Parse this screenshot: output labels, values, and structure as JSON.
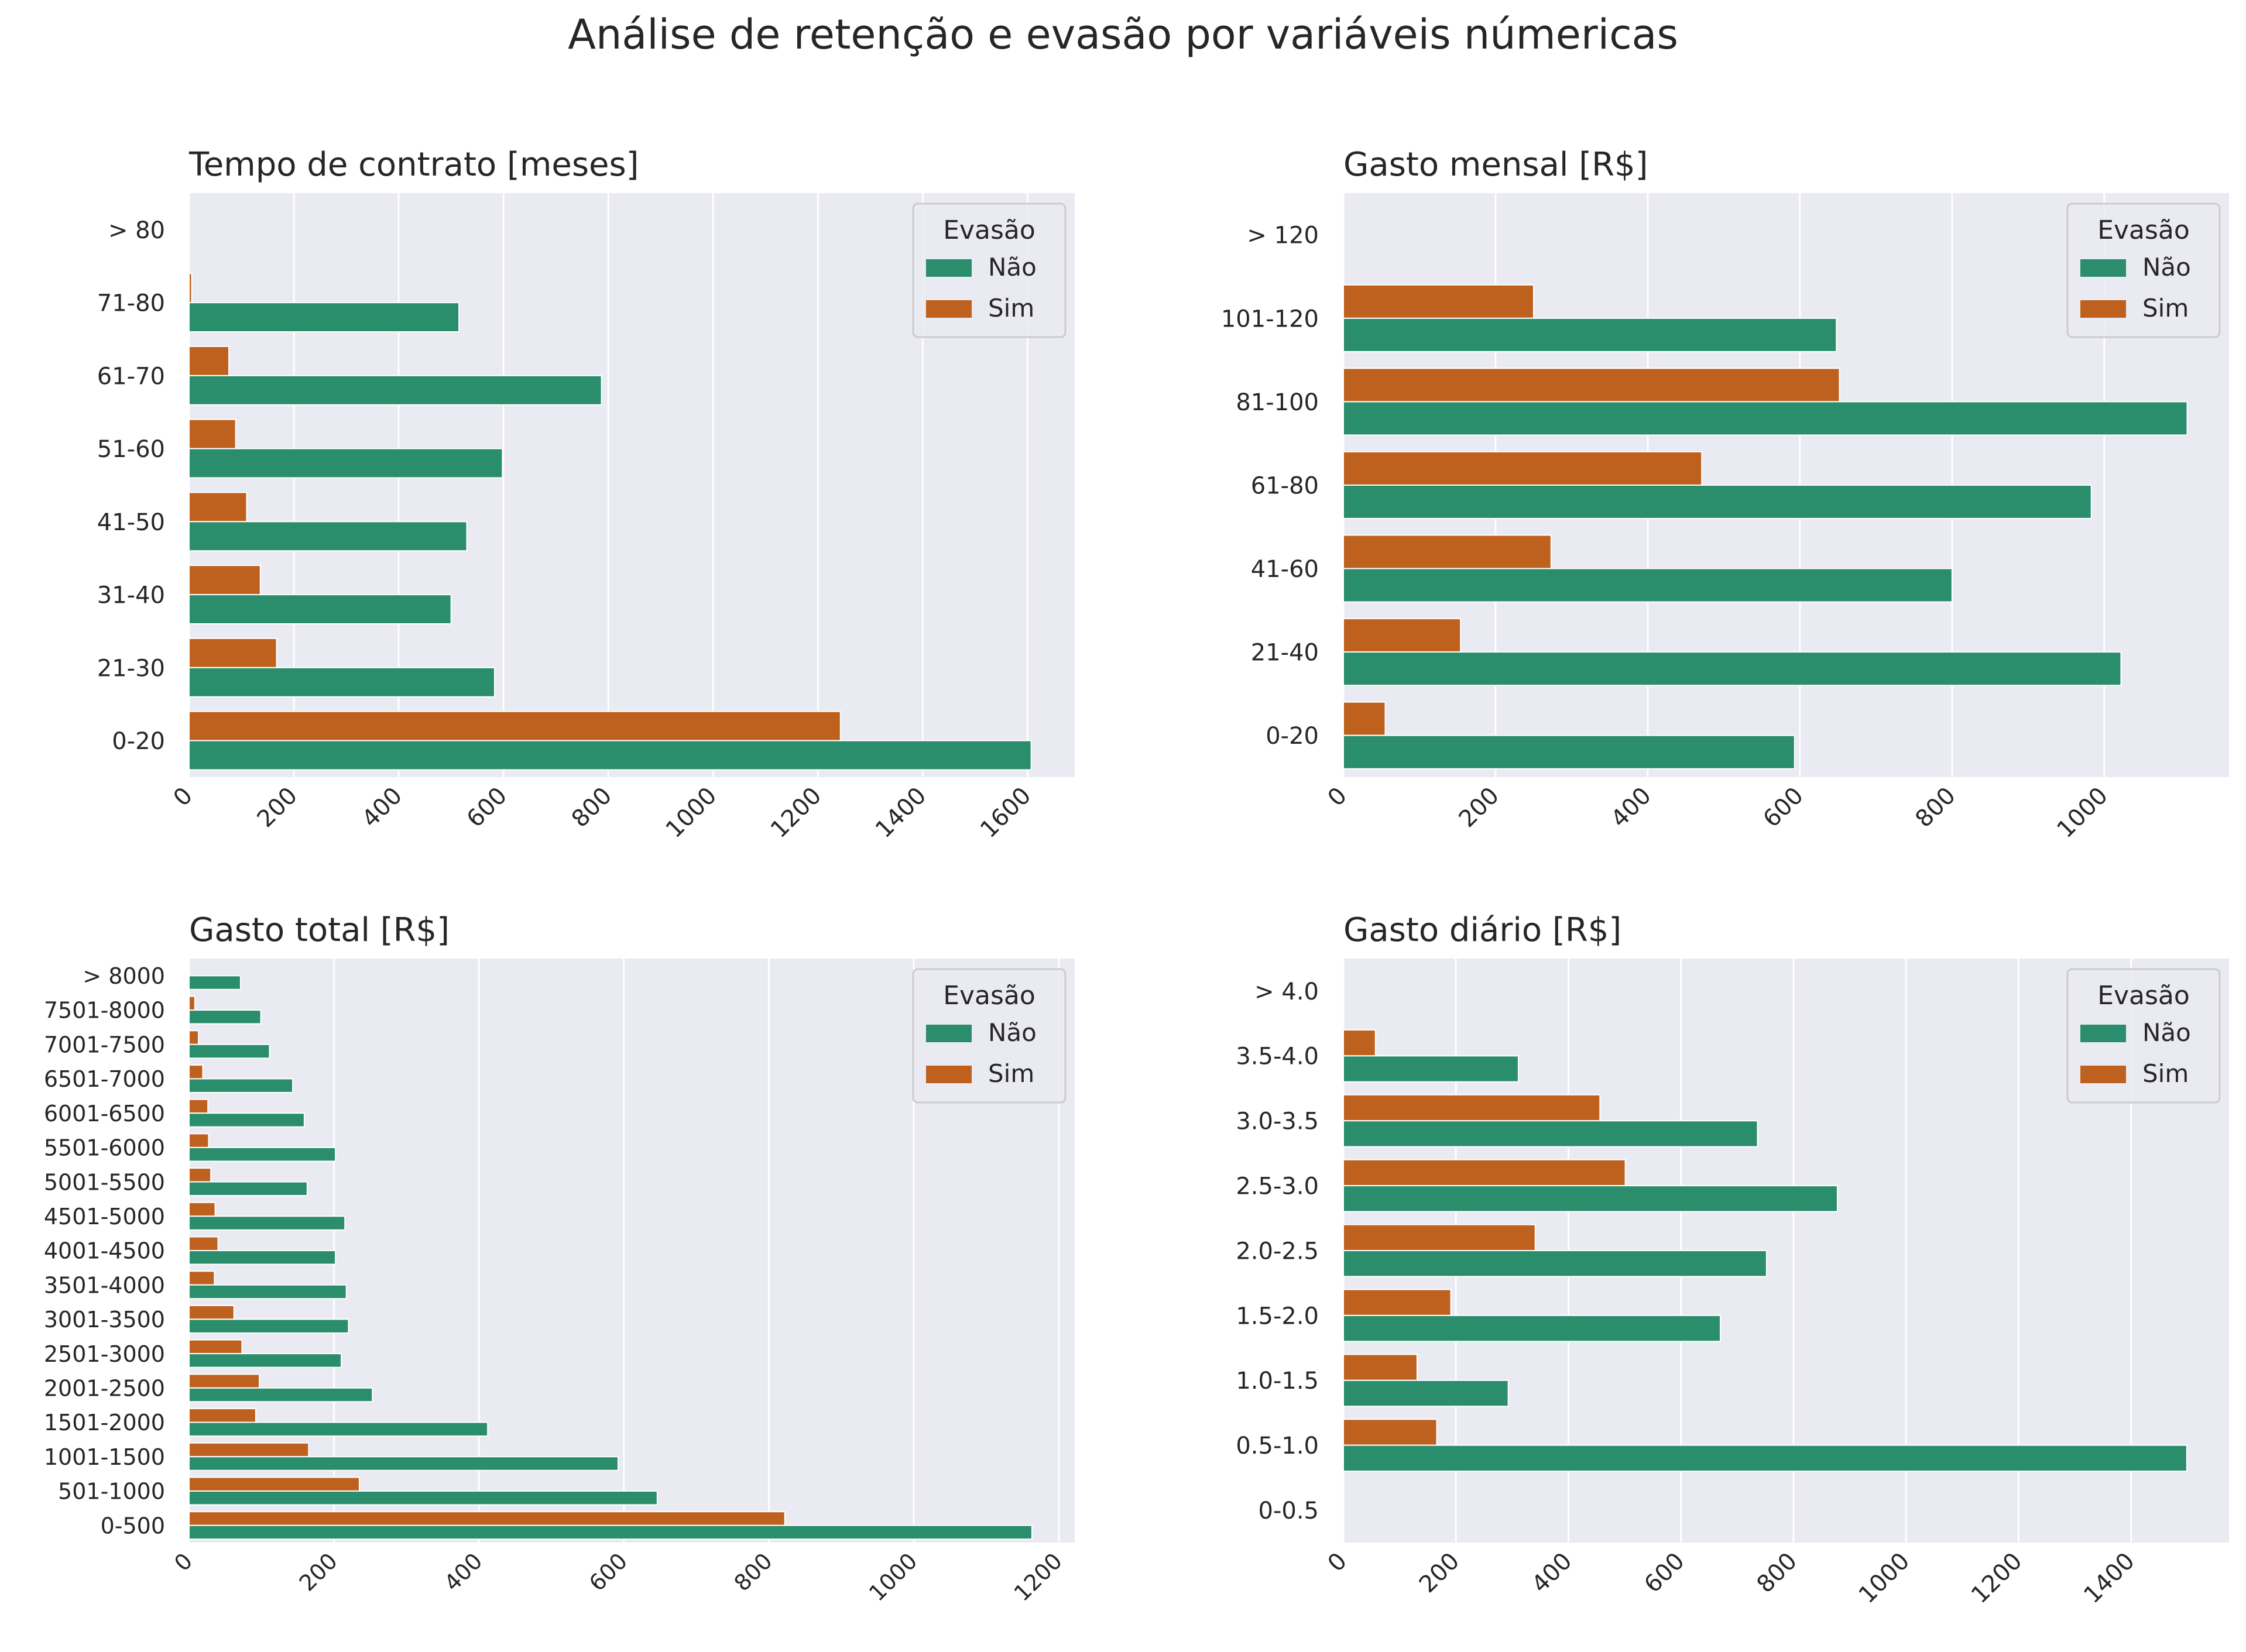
{
  "title": "Análise de retenção e evasão por variáveis númericas",
  "legend": {
    "title": "Evasão",
    "labels": [
      "Não",
      "Sim"
    ]
  },
  "colors": {
    "nao": "#2a8d6c",
    "sim": "#be611e",
    "panel_bg": "#eaeaf2",
    "grid": "#ffffff",
    "text": "#262626"
  },
  "chart_data": [
    {
      "type": "bar",
      "orientation": "horizontal",
      "title": "Tempo de contrato [meses]",
      "categories": [
        "> 80",
        "71-80",
        "61-70",
        "51-60",
        "41-50",
        "31-40",
        "21-30",
        "0-20"
      ],
      "series": [
        {
          "name": "Não",
          "values": [
            0,
            515,
            787,
            598,
            530,
            500,
            583,
            1607
          ]
        },
        {
          "name": "Sim",
          "values": [
            0,
            5,
            76,
            89,
            110,
            136,
            167,
            1243
          ]
        }
      ],
      "xticks": [
        0,
        200,
        400,
        600,
        800,
        1000,
        1200,
        1400,
        1600
      ],
      "xlim": [
        0,
        1690
      ],
      "legend_position": "top-right",
      "grid": true
    },
    {
      "type": "bar",
      "orientation": "horizontal",
      "title": "Gasto mensal [R$]",
      "categories": [
        "> 120",
        "101-120",
        "81-100",
        "61-80",
        "41-60",
        "21-40",
        "0-20"
      ],
      "series": [
        {
          "name": "Não",
          "values": [
            0,
            648,
            1109,
            983,
            800,
            1022,
            593
          ]
        },
        {
          "name": "Sim",
          "values": [
            0,
            250,
            652,
            471,
            273,
            154,
            55
          ]
        }
      ],
      "xticks": [
        0,
        200,
        400,
        600,
        800,
        1000
      ],
      "xlim": [
        0,
        1164
      ],
      "legend_position": "top-right",
      "grid": true
    },
    {
      "type": "bar",
      "orientation": "horizontal",
      "title": "Gasto total [R$]",
      "categories": [
        "> 8000",
        "7501-8000",
        "7001-7500",
        "6501-7000",
        "6001-6500",
        "5501-6000",
        "5001-5500",
        "4501-5000",
        "4001-4500",
        "3501-4000",
        "3001-3500",
        "2501-3000",
        "2001-2500",
        "1501-2000",
        "1001-1500",
        "501-1000",
        "0-500"
      ],
      "series": [
        {
          "name": "Não",
          "values": [
            71,
            99,
            111,
            143,
            159,
            202,
            163,
            215,
            202,
            217,
            220,
            210,
            253,
            412,
            592,
            646,
            1163
          ]
        },
        {
          "name": "Sim",
          "values": [
            0,
            8,
            13,
            19,
            26,
            27,
            30,
            36,
            40,
            35,
            62,
            73,
            97,
            92,
            165,
            235,
            822
          ]
        }
      ],
      "xticks": [
        0,
        200,
        400,
        600,
        800,
        1000,
        1200
      ],
      "xlim": [
        0,
        1222
      ],
      "legend_position": "top-right",
      "grid": true
    },
    {
      "type": "bar",
      "orientation": "horizontal",
      "title": "Gasto diário [R$]",
      "categories": [
        "> 4.0",
        "3.5-4.0",
        "3.0-3.5",
        "2.5-3.0",
        "2.0-2.5",
        "1.5-2.0",
        "1.0-1.5",
        "0.5-1.0",
        "0-0.5"
      ],
      "series": [
        {
          "name": "Não",
          "values": [
            0,
            311,
            736,
            878,
            752,
            670,
            293,
            1499,
            0
          ]
        },
        {
          "name": "Sim",
          "values": [
            0,
            57,
            456,
            501,
            341,
            191,
            131,
            166,
            0
          ]
        }
      ],
      "xticks": [
        0,
        200,
        400,
        600,
        800,
        1000,
        1200,
        1400
      ],
      "xlim": [
        0,
        1574
      ],
      "legend_position": "top-right",
      "grid": true
    }
  ]
}
